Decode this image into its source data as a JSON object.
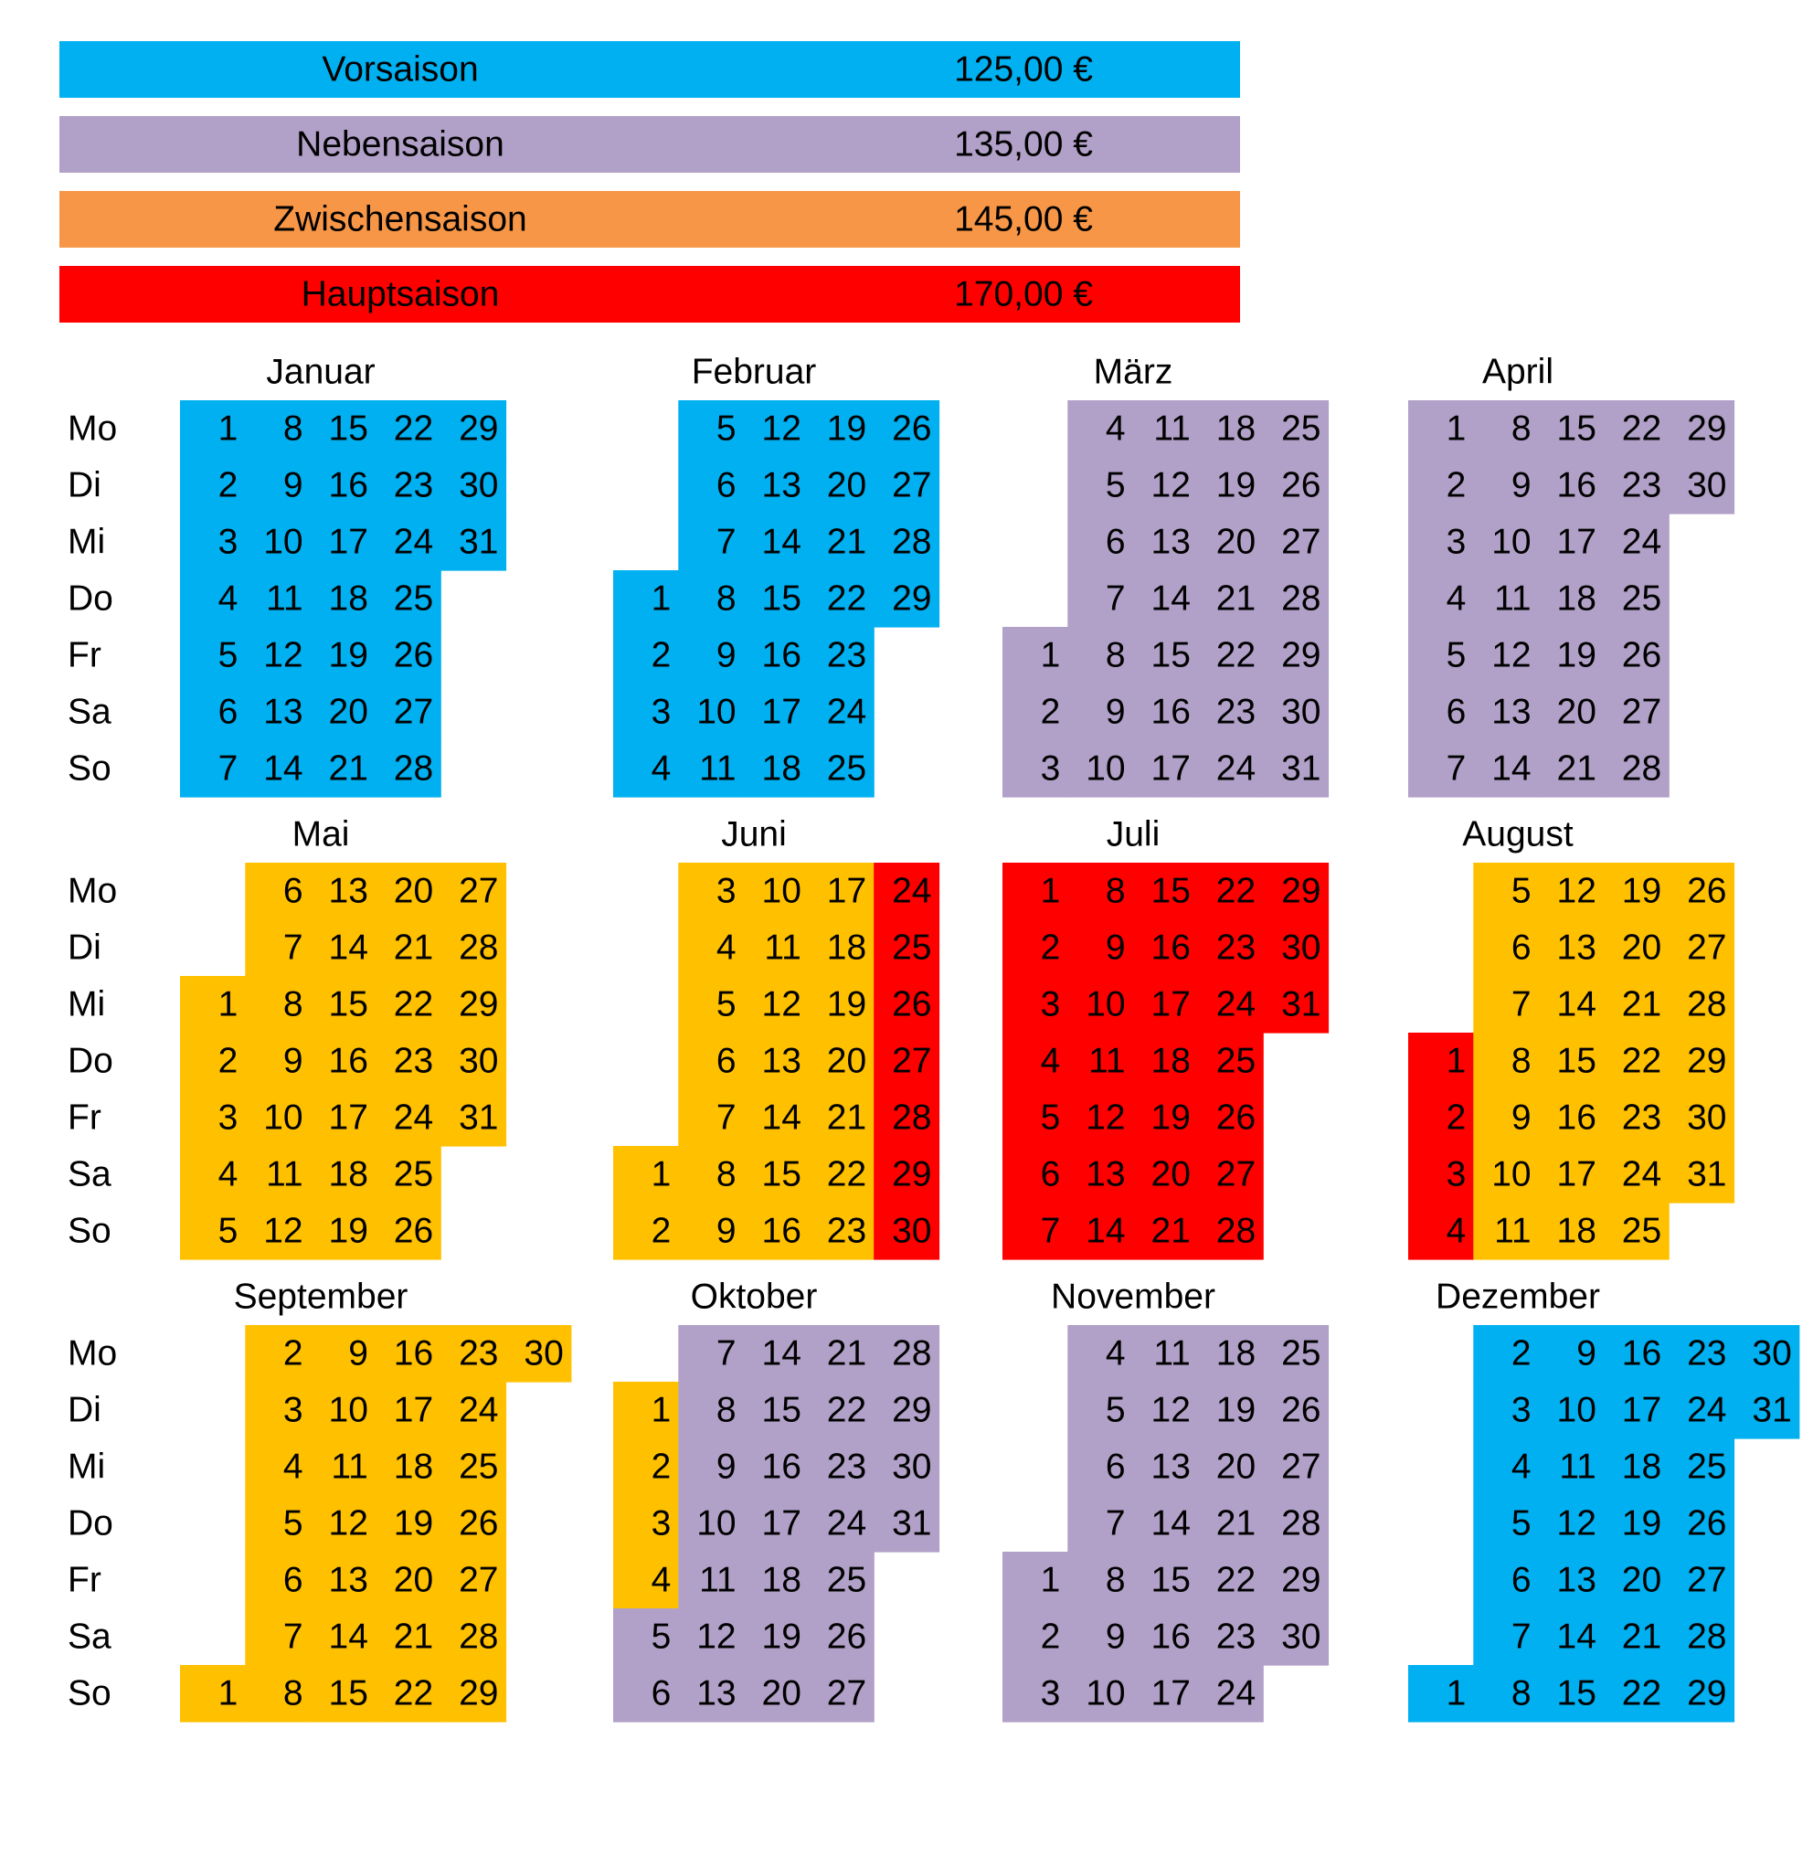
{
  "legend": [
    {
      "name": "Vorsaison",
      "price": "125,00 €",
      "color": "#00B0F0"
    },
    {
      "name": "Nebensaison",
      "price": "135,00 €",
      "color": "#B1A0C7"
    },
    {
      "name": "Zwischensaison",
      "price": "145,00 €",
      "color": "#F79646"
    },
    {
      "name": "Hauptsaison",
      "price": "170,00 €",
      "color": "#FF0000"
    }
  ],
  "weekdays": [
    "Mo",
    "Di",
    "Mi",
    "Do",
    "Fr",
    "Sa",
    "So"
  ],
  "months": [
    {
      "name": "Januar",
      "weeks": [
        [
          1,
          2,
          3,
          4,
          5,
          6,
          7
        ],
        [
          8,
          9,
          10,
          11,
          12,
          13,
          14
        ],
        [
          15,
          16,
          17,
          18,
          19,
          20,
          21
        ],
        [
          22,
          23,
          24,
          25,
          26,
          27,
          28
        ],
        [
          29,
          30,
          31,
          null,
          null,
          null,
          null
        ]
      ],
      "colors": [
        [
          "#00B0F0",
          "#00B0F0",
          "#00B0F0",
          "#00B0F0",
          "#00B0F0",
          "#00B0F0",
          "#00B0F0"
        ],
        [
          "#00B0F0",
          "#00B0F0",
          "#00B0F0",
          "#00B0F0",
          "#00B0F0",
          "#00B0F0",
          "#00B0F0"
        ],
        [
          "#00B0F0",
          "#00B0F0",
          "#00B0F0",
          "#00B0F0",
          "#00B0F0",
          "#00B0F0",
          "#00B0F0"
        ],
        [
          "#00B0F0",
          "#00B0F0",
          "#00B0F0",
          "#00B0F0",
          "#00B0F0",
          "#00B0F0",
          "#00B0F0"
        ],
        [
          "#00B0F0",
          "#00B0F0",
          "#00B0F0",
          null,
          null,
          null,
          null
        ]
      ]
    },
    {
      "name": "Februar",
      "weeks": [
        [
          null,
          null,
          null,
          1,
          2,
          3,
          4
        ],
        [
          5,
          6,
          7,
          8,
          9,
          10,
          11
        ],
        [
          12,
          13,
          14,
          15,
          16,
          17,
          18
        ],
        [
          19,
          20,
          21,
          22,
          23,
          24,
          25
        ],
        [
          26,
          27,
          28,
          29,
          null,
          null,
          null
        ]
      ],
      "colors": [
        [
          null,
          null,
          null,
          "#00B0F0",
          "#00B0F0",
          "#00B0F0",
          "#00B0F0"
        ],
        [
          "#00B0F0",
          "#00B0F0",
          "#00B0F0",
          "#00B0F0",
          "#00B0F0",
          "#00B0F0",
          "#00B0F0"
        ],
        [
          "#00B0F0",
          "#00B0F0",
          "#00B0F0",
          "#00B0F0",
          "#00B0F0",
          "#00B0F0",
          "#00B0F0"
        ],
        [
          "#00B0F0",
          "#00B0F0",
          "#00B0F0",
          "#00B0F0",
          "#00B0F0",
          "#00B0F0",
          "#00B0F0"
        ],
        [
          "#00B0F0",
          "#00B0F0",
          "#00B0F0",
          "#00B0F0",
          null,
          null,
          null
        ]
      ]
    },
    {
      "name": "März",
      "weeks": [
        [
          null,
          null,
          null,
          null,
          1,
          2,
          3
        ],
        [
          4,
          5,
          6,
          7,
          8,
          9,
          10
        ],
        [
          11,
          12,
          13,
          14,
          15,
          16,
          17
        ],
        [
          18,
          19,
          20,
          21,
          22,
          23,
          24
        ],
        [
          25,
          26,
          27,
          28,
          29,
          30,
          31
        ]
      ],
      "colors": [
        [
          null,
          null,
          null,
          null,
          "#B1A0C7",
          "#B1A0C7",
          "#B1A0C7"
        ],
        [
          "#B1A0C7",
          "#B1A0C7",
          "#B1A0C7",
          "#B1A0C7",
          "#B1A0C7",
          "#B1A0C7",
          "#B1A0C7"
        ],
        [
          "#B1A0C7",
          "#B1A0C7",
          "#B1A0C7",
          "#B1A0C7",
          "#B1A0C7",
          "#B1A0C7",
          "#B1A0C7"
        ],
        [
          "#B1A0C7",
          "#B1A0C7",
          "#B1A0C7",
          "#B1A0C7",
          "#B1A0C7",
          "#B1A0C7",
          "#B1A0C7"
        ],
        [
          "#B1A0C7",
          "#B1A0C7",
          "#B1A0C7",
          "#B1A0C7",
          "#B1A0C7",
          "#B1A0C7",
          "#B1A0C7"
        ]
      ]
    },
    {
      "name": "April",
      "weeks": [
        [
          1,
          2,
          3,
          4,
          5,
          6,
          7
        ],
        [
          8,
          9,
          10,
          11,
          12,
          13,
          14
        ],
        [
          15,
          16,
          17,
          18,
          19,
          20,
          21
        ],
        [
          22,
          23,
          24,
          25,
          26,
          27,
          28
        ],
        [
          29,
          30,
          null,
          null,
          null,
          null,
          null
        ]
      ],
      "colors": [
        [
          "#B1A0C7",
          "#B1A0C7",
          "#B1A0C7",
          "#B1A0C7",
          "#B1A0C7",
          "#B1A0C7",
          "#B1A0C7"
        ],
        [
          "#B1A0C7",
          "#B1A0C7",
          "#B1A0C7",
          "#B1A0C7",
          "#B1A0C7",
          "#B1A0C7",
          "#B1A0C7"
        ],
        [
          "#B1A0C7",
          "#B1A0C7",
          "#B1A0C7",
          "#B1A0C7",
          "#B1A0C7",
          "#B1A0C7",
          "#B1A0C7"
        ],
        [
          "#B1A0C7",
          "#B1A0C7",
          "#B1A0C7",
          "#B1A0C7",
          "#B1A0C7",
          "#B1A0C7",
          "#B1A0C7"
        ],
        [
          "#B1A0C7",
          "#B1A0C7",
          null,
          null,
          null,
          null,
          null
        ]
      ]
    },
    {
      "name": "Mai",
      "weeks": [
        [
          null,
          null,
          1,
          2,
          3,
          4,
          5
        ],
        [
          6,
          7,
          8,
          9,
          10,
          11,
          12
        ],
        [
          13,
          14,
          15,
          16,
          17,
          18,
          19
        ],
        [
          20,
          21,
          22,
          23,
          24,
          25,
          26
        ],
        [
          27,
          28,
          29,
          30,
          31,
          null,
          null
        ]
      ],
      "colors": [
        [
          null,
          null,
          "#FFC000",
          "#FFC000",
          "#FFC000",
          "#FFC000",
          "#FFC000"
        ],
        [
          "#FFC000",
          "#FFC000",
          "#FFC000",
          "#FFC000",
          "#FFC000",
          "#FFC000",
          "#FFC000"
        ],
        [
          "#FFC000",
          "#FFC000",
          "#FFC000",
          "#FFC000",
          "#FFC000",
          "#FFC000",
          "#FFC000"
        ],
        [
          "#FFC000",
          "#FFC000",
          "#FFC000",
          "#FFC000",
          "#FFC000",
          "#FFC000",
          "#FFC000"
        ],
        [
          "#FFC000",
          "#FFC000",
          "#FFC000",
          "#FFC000",
          "#FFC000",
          null,
          null
        ]
      ]
    },
    {
      "name": "Juni",
      "weeks": [
        [
          null,
          null,
          null,
          null,
          null,
          1,
          2
        ],
        [
          3,
          4,
          5,
          6,
          7,
          8,
          9
        ],
        [
          10,
          11,
          12,
          13,
          14,
          15,
          16
        ],
        [
          17,
          18,
          19,
          20,
          21,
          22,
          23
        ],
        [
          24,
          25,
          26,
          27,
          28,
          29,
          30
        ]
      ],
      "colors": [
        [
          null,
          null,
          null,
          null,
          null,
          "#FFC000",
          "#FFC000"
        ],
        [
          "#FFC000",
          "#FFC000",
          "#FFC000",
          "#FFC000",
          "#FFC000",
          "#FFC000",
          "#FFC000"
        ],
        [
          "#FFC000",
          "#FFC000",
          "#FFC000",
          "#FFC000",
          "#FFC000",
          "#FFC000",
          "#FFC000"
        ],
        [
          "#FFC000",
          "#FFC000",
          "#FFC000",
          "#FFC000",
          "#FFC000",
          "#FFC000",
          "#FFC000"
        ],
        [
          "#FF0000",
          "#FF0000",
          "#FF0000",
          "#FF0000",
          "#FF0000",
          "#FF0000",
          "#FF0000"
        ]
      ]
    },
    {
      "name": "Juli",
      "weeks": [
        [
          1,
          2,
          3,
          4,
          5,
          6,
          7
        ],
        [
          8,
          9,
          10,
          11,
          12,
          13,
          14
        ],
        [
          15,
          16,
          17,
          18,
          19,
          20,
          21
        ],
        [
          22,
          23,
          24,
          25,
          26,
          27,
          28
        ],
        [
          29,
          30,
          31,
          null,
          null,
          null,
          null
        ]
      ],
      "colors": [
        [
          "#FF0000",
          "#FF0000",
          "#FF0000",
          "#FF0000",
          "#FF0000",
          "#FF0000",
          "#FF0000"
        ],
        [
          "#FF0000",
          "#FF0000",
          "#FF0000",
          "#FF0000",
          "#FF0000",
          "#FF0000",
          "#FF0000"
        ],
        [
          "#FF0000",
          "#FF0000",
          "#FF0000",
          "#FF0000",
          "#FF0000",
          "#FF0000",
          "#FF0000"
        ],
        [
          "#FF0000",
          "#FF0000",
          "#FF0000",
          "#FF0000",
          "#FF0000",
          "#FF0000",
          "#FF0000"
        ],
        [
          "#FF0000",
          "#FF0000",
          "#FF0000",
          null,
          null,
          null,
          null
        ]
      ]
    },
    {
      "name": "August",
      "weeks": [
        [
          null,
          null,
          null,
          1,
          2,
          3,
          4
        ],
        [
          5,
          6,
          7,
          8,
          9,
          10,
          11
        ],
        [
          12,
          13,
          14,
          15,
          16,
          17,
          18
        ],
        [
          19,
          20,
          21,
          22,
          23,
          24,
          25
        ],
        [
          26,
          27,
          28,
          29,
          30,
          31,
          null
        ]
      ],
      "colors": [
        [
          null,
          null,
          null,
          "#FF0000",
          "#FF0000",
          "#FF0000",
          "#FF0000"
        ],
        [
          "#FFC000",
          "#FFC000",
          "#FFC000",
          "#FFC000",
          "#FFC000",
          "#FFC000",
          "#FFC000"
        ],
        [
          "#FFC000",
          "#FFC000",
          "#FFC000",
          "#FFC000",
          "#FFC000",
          "#FFC000",
          "#FFC000"
        ],
        [
          "#FFC000",
          "#FFC000",
          "#FFC000",
          "#FFC000",
          "#FFC000",
          "#FFC000",
          "#FFC000"
        ],
        [
          "#FFC000",
          "#FFC000",
          "#FFC000",
          "#FFC000",
          "#FFC000",
          "#FFC000",
          null
        ]
      ]
    },
    {
      "name": "September",
      "weeks": [
        [
          null,
          null,
          null,
          null,
          null,
          null,
          1
        ],
        [
          2,
          3,
          4,
          5,
          6,
          7,
          8
        ],
        [
          9,
          10,
          11,
          12,
          13,
          14,
          15
        ],
        [
          16,
          17,
          18,
          19,
          20,
          21,
          22
        ],
        [
          23,
          24,
          25,
          26,
          27,
          28,
          29
        ],
        [
          30,
          null,
          null,
          null,
          null,
          null,
          null
        ]
      ],
      "colors": [
        [
          null,
          null,
          null,
          null,
          null,
          null,
          "#FFC000"
        ],
        [
          "#FFC000",
          "#FFC000",
          "#FFC000",
          "#FFC000",
          "#FFC000",
          "#FFC000",
          "#FFC000"
        ],
        [
          "#FFC000",
          "#FFC000",
          "#FFC000",
          "#FFC000",
          "#FFC000",
          "#FFC000",
          "#FFC000"
        ],
        [
          "#FFC000",
          "#FFC000",
          "#FFC000",
          "#FFC000",
          "#FFC000",
          "#FFC000",
          "#FFC000"
        ],
        [
          "#FFC000",
          "#FFC000",
          "#FFC000",
          "#FFC000",
          "#FFC000",
          "#FFC000",
          "#FFC000"
        ],
        [
          "#FFC000",
          null,
          null,
          null,
          null,
          null,
          null
        ]
      ]
    },
    {
      "name": "Oktober",
      "weeks": [
        [
          null,
          1,
          2,
          3,
          4,
          5,
          6
        ],
        [
          7,
          8,
          9,
          10,
          11,
          12,
          13
        ],
        [
          14,
          15,
          16,
          17,
          18,
          19,
          20
        ],
        [
          21,
          22,
          23,
          24,
          25,
          26,
          27
        ],
        [
          28,
          29,
          30,
          31,
          null,
          null,
          null
        ]
      ],
      "colors": [
        [
          null,
          "#FFC000",
          "#FFC000",
          "#FFC000",
          "#FFC000",
          "#B1A0C7",
          "#B1A0C7"
        ],
        [
          "#B1A0C7",
          "#B1A0C7",
          "#B1A0C7",
          "#B1A0C7",
          "#B1A0C7",
          "#B1A0C7",
          "#B1A0C7"
        ],
        [
          "#B1A0C7",
          "#B1A0C7",
          "#B1A0C7",
          "#B1A0C7",
          "#B1A0C7",
          "#B1A0C7",
          "#B1A0C7"
        ],
        [
          "#B1A0C7",
          "#B1A0C7",
          "#B1A0C7",
          "#B1A0C7",
          "#B1A0C7",
          "#B1A0C7",
          "#B1A0C7"
        ],
        [
          "#B1A0C7",
          "#B1A0C7",
          "#B1A0C7",
          "#B1A0C7",
          null,
          null,
          null
        ]
      ]
    },
    {
      "name": "November",
      "weeks": [
        [
          null,
          null,
          null,
          null,
          1,
          2,
          3
        ],
        [
          4,
          5,
          6,
          7,
          8,
          9,
          10
        ],
        [
          11,
          12,
          13,
          14,
          15,
          16,
          17
        ],
        [
          18,
          19,
          20,
          21,
          22,
          23,
          24
        ],
        [
          25,
          26,
          27,
          28,
          29,
          30,
          null
        ]
      ],
      "colors": [
        [
          null,
          null,
          null,
          null,
          "#B1A0C7",
          "#B1A0C7",
          "#B1A0C7"
        ],
        [
          "#B1A0C7",
          "#B1A0C7",
          "#B1A0C7",
          "#B1A0C7",
          "#B1A0C7",
          "#B1A0C7",
          "#B1A0C7"
        ],
        [
          "#B1A0C7",
          "#B1A0C7",
          "#B1A0C7",
          "#B1A0C7",
          "#B1A0C7",
          "#B1A0C7",
          "#B1A0C7"
        ],
        [
          "#B1A0C7",
          "#B1A0C7",
          "#B1A0C7",
          "#B1A0C7",
          "#B1A0C7",
          "#B1A0C7",
          "#B1A0C7"
        ],
        [
          "#B1A0C7",
          "#B1A0C7",
          "#B1A0C7",
          "#B1A0C7",
          "#B1A0C7",
          "#B1A0C7",
          null
        ]
      ]
    },
    {
      "name": "Dezember",
      "weeks": [
        [
          null,
          null,
          null,
          null,
          null,
          null,
          1
        ],
        [
          2,
          3,
          4,
          5,
          6,
          7,
          8
        ],
        [
          9,
          10,
          11,
          12,
          13,
          14,
          15
        ],
        [
          16,
          17,
          18,
          19,
          20,
          21,
          22
        ],
        [
          23,
          24,
          25,
          26,
          27,
          28,
          29
        ],
        [
          30,
          31,
          null,
          null,
          null,
          null,
          null
        ]
      ],
      "colors": [
        [
          null,
          null,
          null,
          null,
          null,
          null,
          "#00B0F0"
        ],
        [
          "#00B0F0",
          "#00B0F0",
          "#00B0F0",
          "#00B0F0",
          "#00B0F0",
          "#00B0F0",
          "#00B0F0"
        ],
        [
          "#00B0F0",
          "#00B0F0",
          "#00B0F0",
          "#00B0F0",
          "#00B0F0",
          "#00B0F0",
          "#00B0F0"
        ],
        [
          "#00B0F0",
          "#00B0F0",
          "#00B0F0",
          "#00B0F0",
          "#00B0F0",
          "#00B0F0",
          "#00B0F0"
        ],
        [
          "#00B0F0",
          "#00B0F0",
          "#00B0F0",
          "#00B0F0",
          "#00B0F0",
          "#00B0F0",
          "#00B0F0"
        ],
        [
          "#00B0F0",
          "#00B0F0",
          null,
          null,
          null,
          null,
          null
        ]
      ]
    }
  ]
}
